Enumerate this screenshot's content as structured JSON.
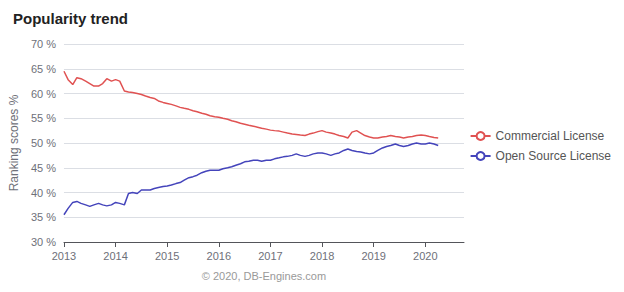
{
  "chart_data": {
    "type": "line",
    "title": "Popularity trend",
    "xlabel": "© 2020, DB-Engines.com",
    "ylabel": "Ranking scores %",
    "xlim": [
      2013.0,
      2020.75
    ],
    "xticks": [
      2013,
      2014,
      2015,
      2016,
      2017,
      2018,
      2019,
      2020
    ],
    "ylim": [
      30,
      70
    ],
    "yticks": [
      {
        "value": 30,
        "label": "30 %"
      },
      {
        "value": 35,
        "label": "35 %"
      },
      {
        "value": 40,
        "label": "40 %"
      },
      {
        "value": 45,
        "label": "45 %"
      },
      {
        "value": 50,
        "label": "50 %"
      },
      {
        "value": 55,
        "label": "55 %"
      },
      {
        "value": 60,
        "label": "60 %"
      },
      {
        "value": 65,
        "label": "65 %"
      },
      {
        "value": 70,
        "label": "70 %"
      }
    ],
    "grid": true,
    "legend": "right",
    "x": [
      2013.0,
      2013.08,
      2013.17,
      2013.25,
      2013.33,
      2013.42,
      2013.5,
      2013.58,
      2013.67,
      2013.75,
      2013.83,
      2013.92,
      2014.0,
      2014.08,
      2014.17,
      2014.25,
      2014.33,
      2014.42,
      2014.5,
      2014.58,
      2014.67,
      2014.75,
      2014.83,
      2014.92,
      2015.0,
      2015.08,
      2015.17,
      2015.25,
      2015.33,
      2015.42,
      2015.5,
      2015.58,
      2015.67,
      2015.75,
      2015.83,
      2015.92,
      2016.0,
      2016.08,
      2016.17,
      2016.25,
      2016.33,
      2016.42,
      2016.5,
      2016.58,
      2016.67,
      2016.75,
      2016.83,
      2016.92,
      2017.0,
      2017.08,
      2017.17,
      2017.25,
      2017.33,
      2017.42,
      2017.5,
      2017.58,
      2017.67,
      2017.75,
      2017.83,
      2017.92,
      2018.0,
      2018.08,
      2018.17,
      2018.25,
      2018.33,
      2018.42,
      2018.5,
      2018.58,
      2018.67,
      2018.75,
      2018.83,
      2018.92,
      2019.0,
      2019.08,
      2019.17,
      2019.25,
      2019.33,
      2019.42,
      2019.5,
      2019.58,
      2019.67,
      2019.75,
      2019.83,
      2019.92,
      2020.0,
      2020.08,
      2020.17,
      2020.25
    ],
    "series": [
      {
        "name": "Commercial License",
        "color": "#e05252",
        "values": [
          64.5,
          62.8,
          61.8,
          63.2,
          63.0,
          62.5,
          62.0,
          61.5,
          61.5,
          62.0,
          63.0,
          62.5,
          62.8,
          62.5,
          60.5,
          60.3,
          60.2,
          60.0,
          59.8,
          59.5,
          59.2,
          59.0,
          58.5,
          58.2,
          58.0,
          57.8,
          57.5,
          57.2,
          57.0,
          56.8,
          56.5,
          56.3,
          56.0,
          55.8,
          55.5,
          55.3,
          55.2,
          55.0,
          54.8,
          54.5,
          54.3,
          54.0,
          53.8,
          53.6,
          53.4,
          53.2,
          53.0,
          52.8,
          52.6,
          52.5,
          52.4,
          52.2,
          52.0,
          51.8,
          51.7,
          51.6,
          51.5,
          51.8,
          52.0,
          52.3,
          52.5,
          52.2,
          52.0,
          51.8,
          51.5,
          51.3,
          51.0,
          52.2,
          52.5,
          52.0,
          51.5,
          51.2,
          51.0,
          51.0,
          51.2,
          51.3,
          51.5,
          51.3,
          51.2,
          51.0,
          51.2,
          51.3,
          51.5,
          51.6,
          51.5,
          51.3,
          51.1,
          51.0
        ]
      },
      {
        "name": "Open Source License",
        "color": "#4444bb",
        "values": [
          35.5,
          36.8,
          38.0,
          38.2,
          37.8,
          37.5,
          37.2,
          37.5,
          37.8,
          37.5,
          37.3,
          37.5,
          38.0,
          37.8,
          37.5,
          39.8,
          40.0,
          39.8,
          40.5,
          40.5,
          40.5,
          40.8,
          41.0,
          41.2,
          41.3,
          41.5,
          41.8,
          42.0,
          42.5,
          43.0,
          43.2,
          43.5,
          44.0,
          44.3,
          44.5,
          44.5,
          44.5,
          44.8,
          45.0,
          45.2,
          45.5,
          45.8,
          46.2,
          46.3,
          46.5,
          46.5,
          46.3,
          46.5,
          46.5,
          46.8,
          47.0,
          47.2,
          47.3,
          47.5,
          47.8,
          47.5,
          47.3,
          47.5,
          47.8,
          48.0,
          48.0,
          47.8,
          47.5,
          47.8,
          48.0,
          48.5,
          48.8,
          48.5,
          48.3,
          48.2,
          48.0,
          47.8,
          48.0,
          48.5,
          49.0,
          49.3,
          49.5,
          49.8,
          49.5,
          49.3,
          49.5,
          49.8,
          50.0,
          49.8,
          49.8,
          50.0,
          49.8,
          49.5
        ]
      }
    ]
  }
}
